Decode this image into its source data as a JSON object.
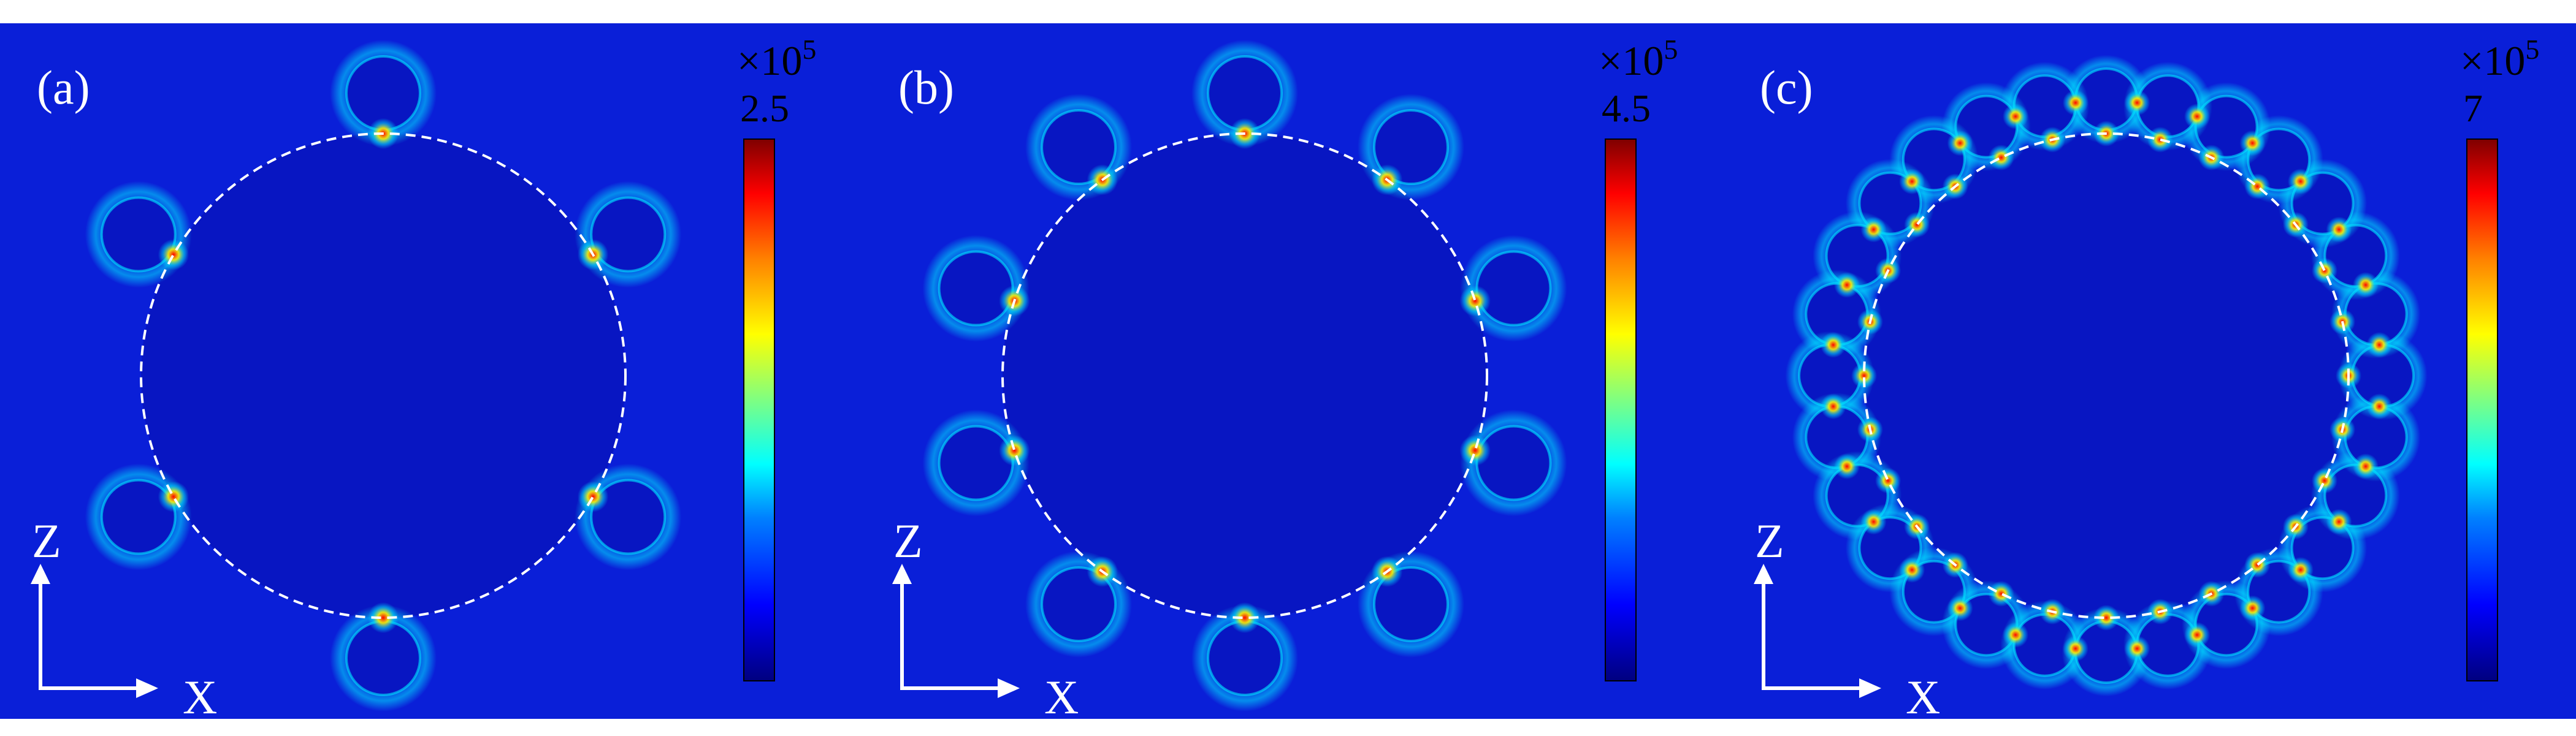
{
  "panels": [
    {
      "label": "(a)",
      "colorbar_max": "2.5",
      "colorbar_exponent": "5",
      "particle_count": 6
    },
    {
      "label": "(b)",
      "colorbar_max": "4.5",
      "colorbar_exponent": "5",
      "particle_count": 10
    },
    {
      "label": "(c)",
      "colorbar_max": "7",
      "colorbar_exponent": "5",
      "particle_count": 28
    }
  ],
  "axes": {
    "vertical": "Z",
    "horizontal": "X"
  },
  "colorbar_prefix": "×10",
  "colors": {
    "background_field": "#0a1fd8",
    "core": "#0816c2",
    "hot": "#ff0000",
    "warm": "#ffee00",
    "cool": "#00e5ff",
    "ring": "#ffffff"
  }
}
